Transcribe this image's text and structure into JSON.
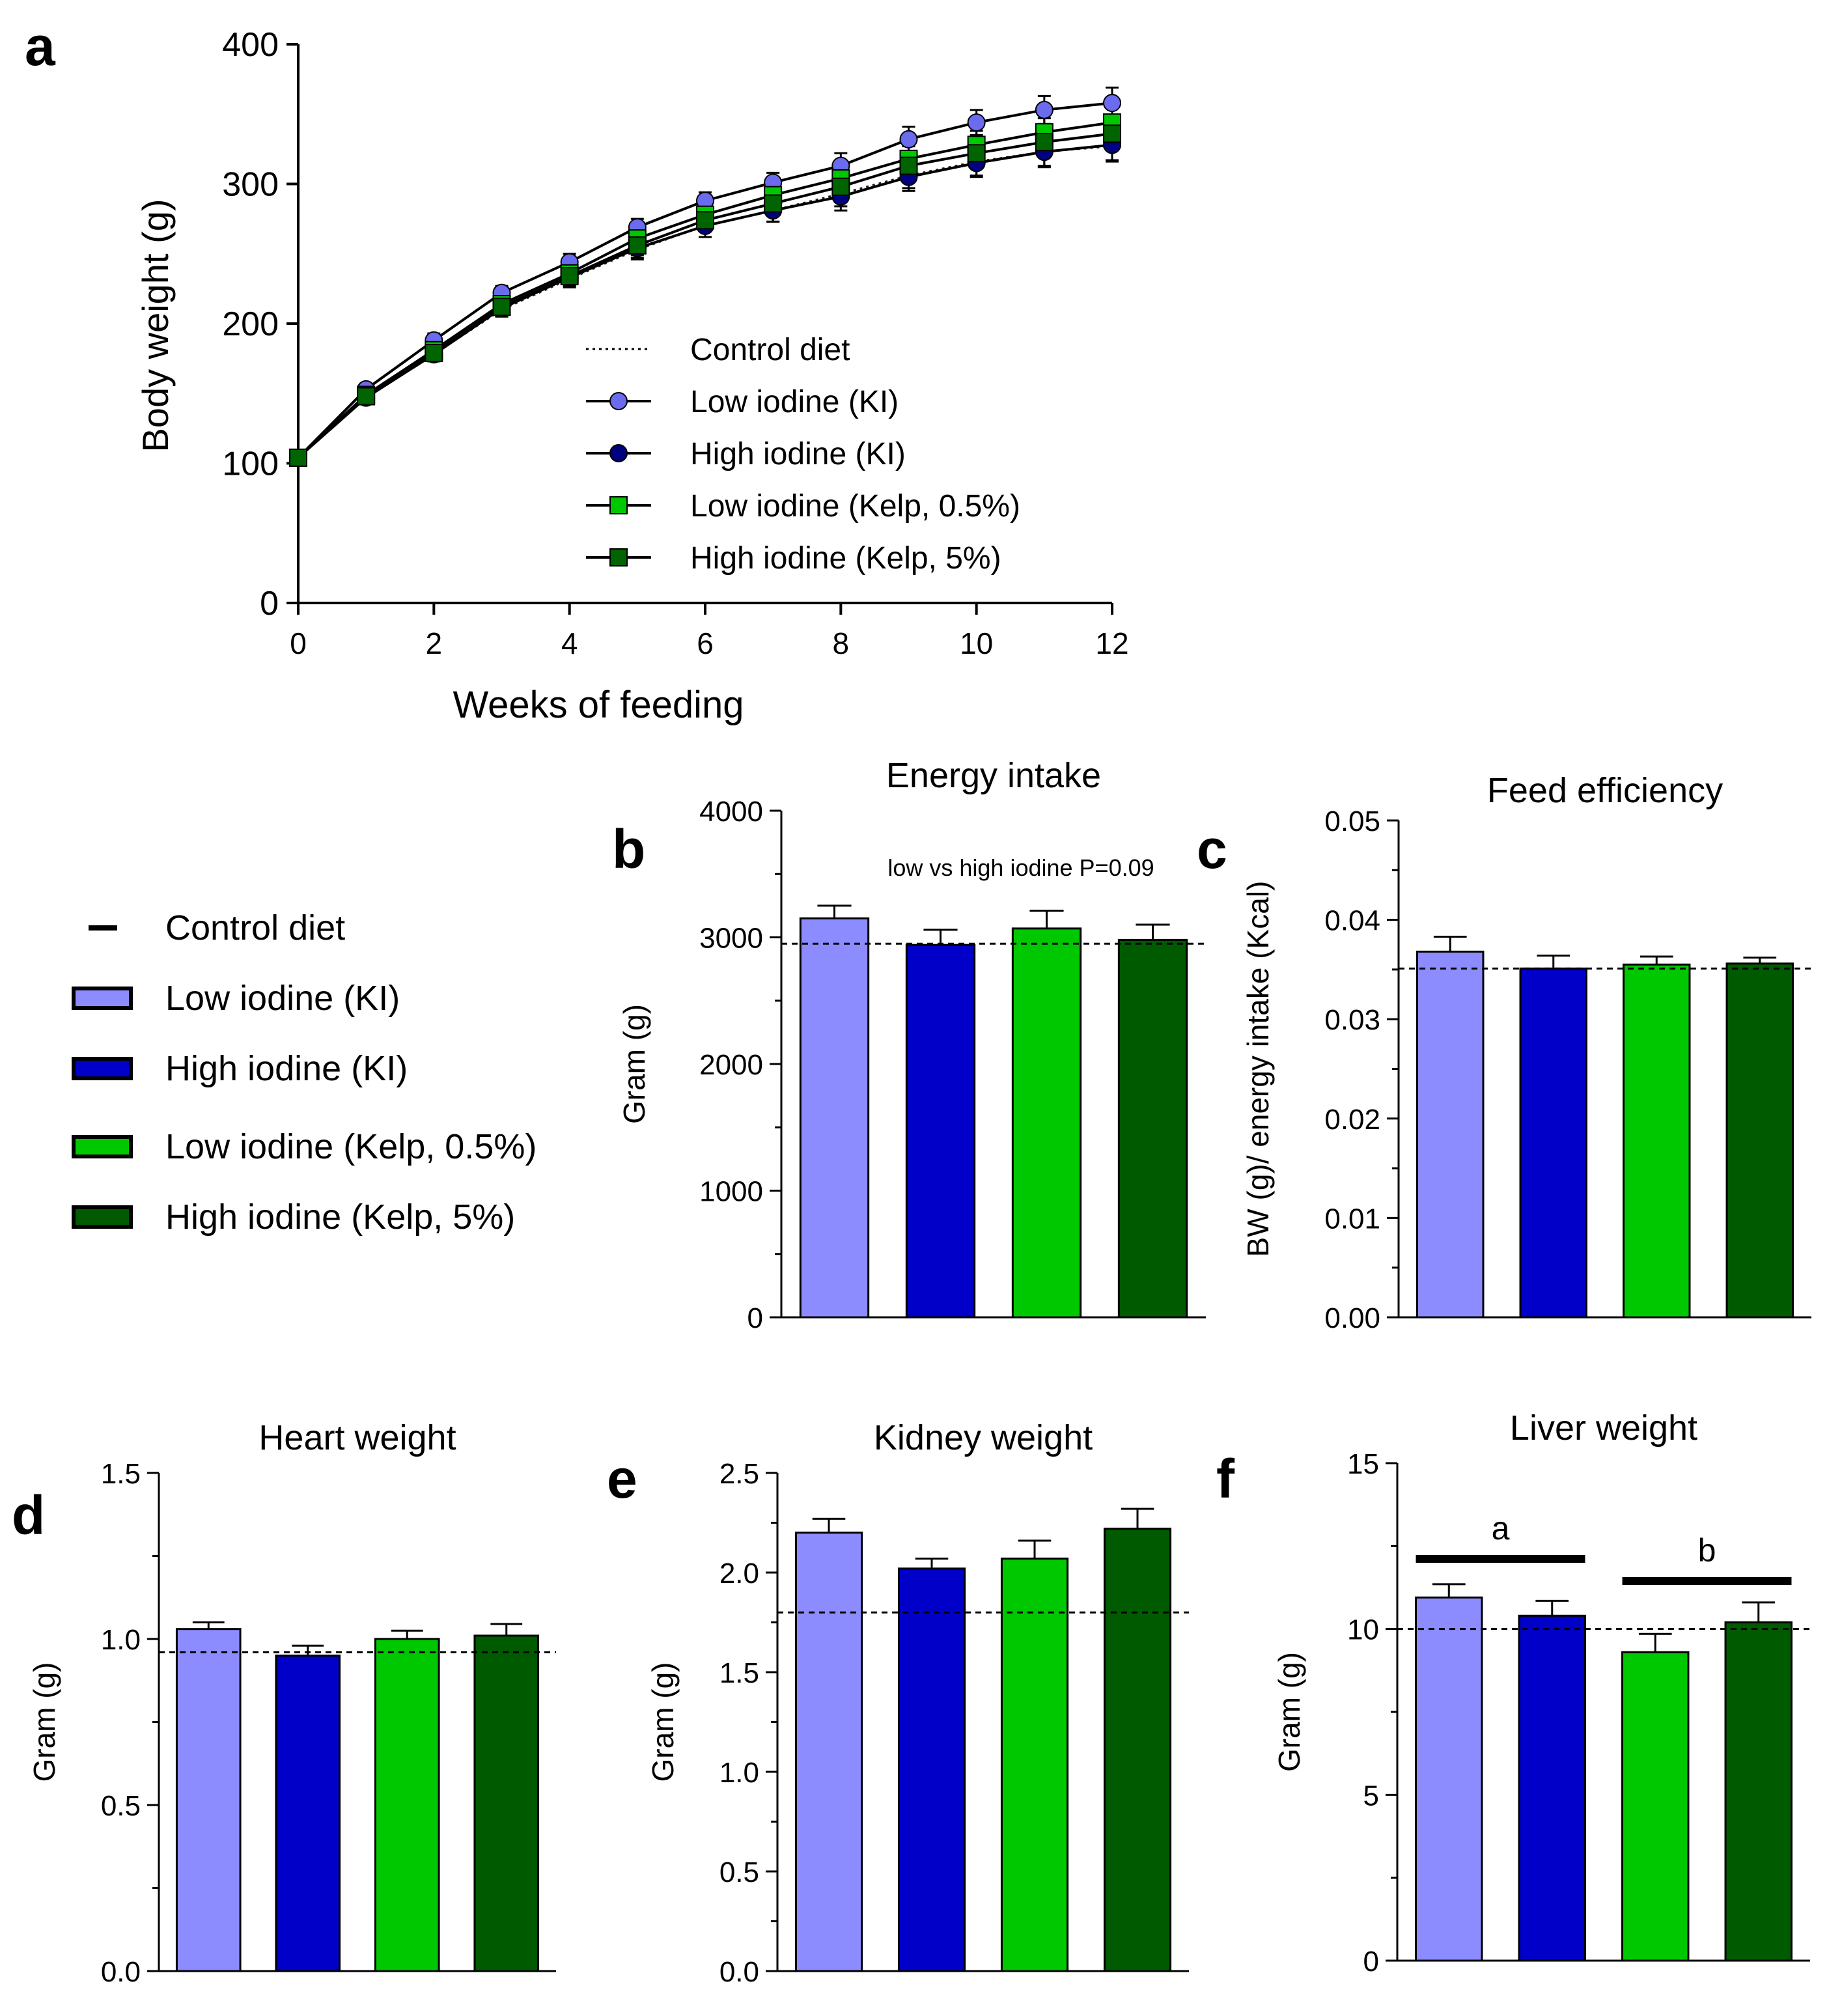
{
  "figure": {
    "legend_title": "",
    "shared_legend": [
      {
        "label": "Control diet",
        "color": "#000000",
        "marker": "dash"
      },
      {
        "label": "Low iodine (KI)",
        "color": "#8C8CFF",
        "marker": "bar"
      },
      {
        "label": "High iodine (KI)",
        "color": "#0000C8",
        "marker": "bar"
      },
      {
        "label": "Low iodine (Kelp, 0.5%)",
        "color": "#00C800",
        "marker": "bar"
      },
      {
        "label": "High iodine (Kelp, 5%)",
        "color": "#005A00",
        "marker": "bar"
      }
    ]
  },
  "chart_data": [
    {
      "panel": "a",
      "type": "line",
      "title": "",
      "xlabel": "Weeks of feeding",
      "ylabel": "Body weight (g)",
      "xlim": [
        0,
        12
      ],
      "ylim": [
        0,
        400
      ],
      "xticks": [
        0,
        2,
        4,
        6,
        8,
        10,
        12
      ],
      "yticks": [
        0,
        100,
        200,
        300,
        400
      ],
      "x": [
        0,
        1,
        2,
        3,
        4,
        5,
        6,
        7,
        8,
        9,
        10,
        11,
        12
      ],
      "legend": [
        "Control diet",
        "Low iodine (KI)",
        "High iodine (KI)",
        "Low iodine (Kelp, 0.5%)",
        "High iodine (Kelp, 5%)"
      ],
      "series": [
        {
          "name": "Control diet",
          "color": "#000000",
          "marker": "none",
          "dotted": true,
          "values": [
            104,
            147,
            178,
            210,
            232,
            253,
            270,
            281,
            293,
            306,
            316,
            323,
            327
          ],
          "err": [
            4,
            4,
            5,
            5,
            6,
            7,
            8,
            8,
            9,
            9,
            10,
            10,
            11
          ]
        },
        {
          "name": "Low iodine (KI)",
          "color": "#6B6BF0",
          "marker": "circle",
          "values": [
            104,
            153,
            188,
            222,
            244,
            269,
            288,
            301,
            313,
            332,
            344,
            353,
            358
          ],
          "err": [
            4,
            4,
            5,
            5,
            6,
            6,
            6,
            7,
            9,
            9,
            9,
            10,
            11
          ]
        },
        {
          "name": "High iodine (KI)",
          "color": "#000080",
          "marker": "circle",
          "values": [
            104,
            147,
            178,
            211,
            233,
            254,
            270,
            281,
            291,
            305,
            315,
            323,
            328
          ],
          "err": [
            4,
            4,
            5,
            5,
            6,
            7,
            8,
            8,
            10,
            10,
            10,
            11,
            11
          ]
        },
        {
          "name": "Low iodine (Kelp, 0.5%)",
          "color": "#00C800",
          "marker": "square",
          "values": [
            104,
            149,
            181,
            214,
            236,
            261,
            278,
            292,
            304,
            318,
            328,
            337,
            344
          ],
          "err": [
            4,
            4,
            5,
            5,
            6,
            7,
            7,
            8,
            9,
            9,
            10,
            10,
            11
          ]
        },
        {
          "name": "High iodine (Kelp, 5%)",
          "color": "#006400",
          "marker": "square",
          "values": [
            104,
            148,
            179,
            212,
            234,
            256,
            274,
            286,
            298,
            313,
            322,
            330,
            336
          ],
          "err": [
            4,
            4,
            5,
            5,
            6,
            7,
            8,
            8,
            9,
            9,
            10,
            10,
            11
          ]
        }
      ]
    },
    {
      "panel": "b",
      "type": "bar",
      "title": "Energy intake",
      "xlabel": "",
      "ylabel": "Gram (g)",
      "ylim": [
        0,
        4000
      ],
      "yticks": [
        0,
        1000,
        2000,
        3000,
        4000
      ],
      "tick_labels": [
        "0",
        "1000",
        "2000",
        "3000",
        "4000"
      ],
      "categories": [
        "Low iodine (KI)",
        "High iodine (KI)",
        "Low iodine (Kelp, 0.5%)",
        "High iodine (Kelp, 5%)"
      ],
      "values": [
        3150,
        2940,
        3070,
        2980
      ],
      "errors": [
        100,
        120,
        140,
        120
      ],
      "control_line": 2950,
      "annotation": "low vs high iodine P=0.09"
    },
    {
      "panel": "c",
      "type": "bar",
      "title": "Feed efficiency",
      "xlabel": "",
      "ylabel": "BW (g)/ energy intake (Kcal)",
      "ylim": [
        0,
        0.05
      ],
      "yticks": [
        0,
        0.01,
        0.02,
        0.03,
        0.04,
        0.05
      ],
      "tick_labels": [
        "0.00",
        "0.01",
        "0.02",
        "0.03",
        "0.04",
        "0.05"
      ],
      "categories": [
        "Low iodine (KI)",
        "High iodine (KI)",
        "Low iodine (Kelp, 0.5%)",
        "High iodine (Kelp, 5%)"
      ],
      "values": [
        0.0368,
        0.0351,
        0.0355,
        0.0356
      ],
      "errors": [
        0.0015,
        0.0013,
        0.0008,
        0.0006
      ],
      "control_line": 0.0351
    },
    {
      "panel": "d",
      "type": "bar",
      "title": "Heart weight",
      "xlabel": "",
      "ylabel": "Gram (g)",
      "ylim": [
        0,
        1.5
      ],
      "yticks": [
        0,
        0.5,
        1.0,
        1.5
      ],
      "tick_labels": [
        "0.0",
        "0.5",
        "1.0",
        "1.5"
      ],
      "categories": [
        "Low iodine (KI)",
        "High iodine (KI)",
        "Low iodine (Kelp, 0.5%)",
        "High iodine (Kelp, 5%)"
      ],
      "values": [
        1.03,
        0.95,
        1.0,
        1.01
      ],
      "errors": [
        0.02,
        0.03,
        0.025,
        0.035
      ],
      "control_line": 0.96
    },
    {
      "panel": "e",
      "type": "bar",
      "title": "Kidney weight",
      "xlabel": "",
      "ylabel": "Gram (g)",
      "ylim": [
        0,
        2.5
      ],
      "yticks": [
        0,
        0.5,
        1.0,
        1.5,
        2.0,
        2.5
      ],
      "tick_labels": [
        "0.0",
        "0.5",
        "1.0",
        "1.5",
        "2.0",
        "2.5"
      ],
      "categories": [
        "Low iodine (KI)",
        "High iodine (KI)",
        "Low iodine (Kelp, 0.5%)",
        "High iodine (Kelp, 5%)"
      ],
      "values": [
        2.2,
        2.02,
        2.07,
        2.22
      ],
      "errors": [
        0.07,
        0.05,
        0.09,
        0.1
      ],
      "control_line": 1.8
    },
    {
      "panel": "f",
      "type": "bar",
      "title": "Liver weight",
      "xlabel": "",
      "ylabel": "Gram (g)",
      "ylim": [
        0,
        15
      ],
      "yticks": [
        0,
        5,
        10,
        15
      ],
      "tick_labels": [
        "0",
        "5",
        "10",
        "15"
      ],
      "categories": [
        "Low iodine (KI)",
        "High iodine (KI)",
        "Low iodine (Kelp, 0.5%)",
        "High iodine (Kelp, 5%)"
      ],
      "values": [
        10.95,
        10.4,
        9.3,
        10.2
      ],
      "errors": [
        0.4,
        0.45,
        0.55,
        0.6
      ],
      "control_line": 10.0,
      "significance": [
        {
          "label": "a",
          "from": 0,
          "to": 1
        },
        {
          "label": "b",
          "from": 2,
          "to": 3
        }
      ]
    }
  ]
}
